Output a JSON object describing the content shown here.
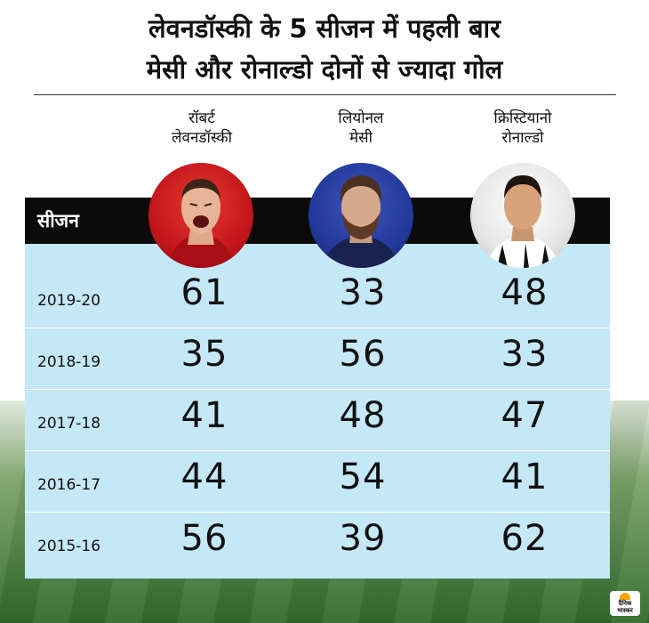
{
  "title": {
    "line1": "लेवनडॉस्की के 5 सीजन में पहली बार",
    "line2": "मेसी और रोनाल्डो दोनों से ज्यादा गोल"
  },
  "table_header": {
    "season_label": "सीजन"
  },
  "players": [
    {
      "name_line1": "रॉबर्ट",
      "name_line2": "लेवनडॉस्की"
    },
    {
      "name_line1": "लियोनल",
      "name_line2": "मेसी"
    },
    {
      "name_line1": "क्रिस्टियानो",
      "name_line2": "रोनाल्डो"
    }
  ],
  "chart_data": {
    "type": "table",
    "columns": [
      "सीजन",
      "रॉबर्ट लेवनडॉस्की",
      "लियोनल मेसी",
      "क्रिस्टियानो रोनाल्डो"
    ],
    "rows": [
      {
        "season": "2019-20",
        "values": [
          61,
          33,
          48
        ]
      },
      {
        "season": "2018-19",
        "values": [
          35,
          56,
          33
        ]
      },
      {
        "season": "2017-18",
        "values": [
          41,
          48,
          47
        ]
      },
      {
        "season": "2016-17",
        "values": [
          44,
          54,
          41
        ]
      },
      {
        "season": "2015-16",
        "values": [
          56,
          39,
          62
        ]
      }
    ]
  },
  "logo": {
    "line1": "दैनिक",
    "line2": "भास्कर"
  },
  "colors": {
    "table_bg": "#c5e8f7",
    "header_bar": "#0b0b0b",
    "lewandowski_bg": "#c4161c",
    "messi_bg": "#24399a",
    "ronaldo_bg": "#e6e6e6"
  },
  "icons": [
    "lewandowski-photo",
    "messi-photo",
    "ronaldo-photo",
    "dainik-bhaskar-logo"
  ]
}
